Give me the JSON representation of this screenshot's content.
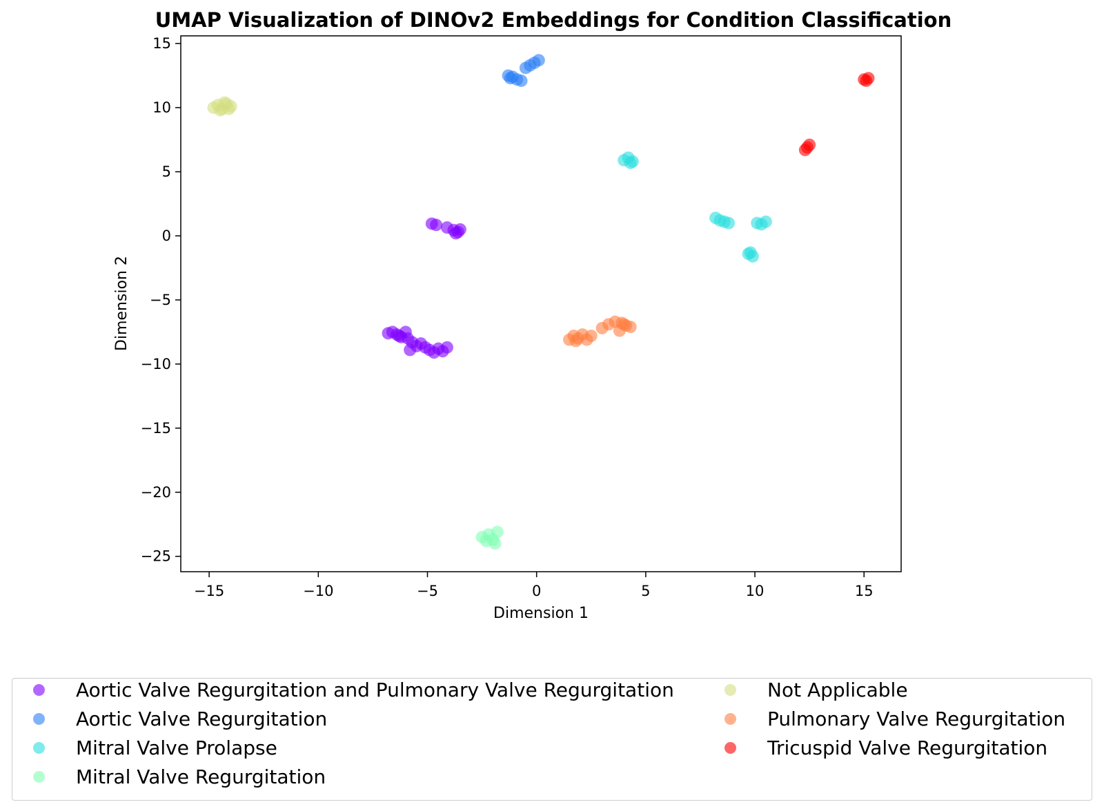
{
  "chart_data": {
    "type": "scatter",
    "title": "UMAP Visualization of DINOv2 Embeddings for Condition Classification",
    "xlabel": "Dimension 1",
    "ylabel": "Dimension 2",
    "xlim": [
      -16.3,
      16.7
    ],
    "ylim": [
      -26.2,
      15.6
    ],
    "xticks": [
      -15,
      -10,
      -5,
      0,
      5,
      10,
      15
    ],
    "yticks": [
      15,
      10,
      5,
      0,
      -5,
      -10,
      -15,
      -20,
      -25
    ],
    "xtick_labels": [
      "−15",
      "−10",
      "−5",
      "0",
      "5",
      "10",
      "15"
    ],
    "ytick_labels": [
      "15",
      "10",
      "5",
      "0",
      "−5",
      "−10",
      "−15",
      "−20",
      "−25"
    ],
    "grid": false,
    "legend_position": "bottom",
    "series": [
      {
        "name": "Aortic Valve Regurgitation and Pulmonary Valve Regurgitation",
        "color": "#8000ff",
        "points": [
          [
            -4.8,
            0.95
          ],
          [
            -4.6,
            0.85
          ],
          [
            -4.1,
            0.65
          ],
          [
            -3.8,
            0.45
          ],
          [
            -3.6,
            0.3
          ],
          [
            -3.5,
            0.5
          ],
          [
            -3.7,
            0.2
          ],
          [
            -6.8,
            -7.6
          ],
          [
            -6.6,
            -7.5
          ],
          [
            -6.4,
            -7.7
          ],
          [
            -6.2,
            -7.9
          ],
          [
            -6.0,
            -7.5
          ],
          [
            -5.9,
            -8.0
          ],
          [
            -5.7,
            -8.3
          ],
          [
            -5.5,
            -8.6
          ],
          [
            -5.3,
            -8.4
          ],
          [
            -5.1,
            -8.7
          ],
          [
            -4.9,
            -8.9
          ],
          [
            -4.7,
            -9.1
          ],
          [
            -4.5,
            -8.8
          ],
          [
            -4.3,
            -9.0
          ],
          [
            -4.1,
            -8.7
          ],
          [
            -5.8,
            -8.9
          ],
          [
            -6.3,
            -7.8
          ]
        ]
      },
      {
        "name": "Aortic Valve Regurgitation",
        "color": "#2c7ef7",
        "points": [
          [
            -1.3,
            12.5
          ],
          [
            -1.1,
            12.4
          ],
          [
            -0.9,
            12.2
          ],
          [
            -0.7,
            12.1
          ],
          [
            -0.5,
            13.1
          ],
          [
            -0.3,
            13.3
          ],
          [
            -0.1,
            13.5
          ],
          [
            0.1,
            13.7
          ],
          [
            -1.2,
            12.3
          ]
        ]
      },
      {
        "name": "Mitral Valve Prolapse",
        "color": "#2adddd",
        "points": [
          [
            4.0,
            5.9
          ],
          [
            4.2,
            6.1
          ],
          [
            4.4,
            5.8
          ],
          [
            4.3,
            5.7
          ],
          [
            8.2,
            1.4
          ],
          [
            8.4,
            1.2
          ],
          [
            8.6,
            1.1
          ],
          [
            8.8,
            1.0
          ],
          [
            10.1,
            1.0
          ],
          [
            10.3,
            0.9
          ],
          [
            10.5,
            1.1
          ],
          [
            9.7,
            -1.4
          ],
          [
            9.9,
            -1.6
          ],
          [
            9.8,
            -1.3
          ]
        ]
      },
      {
        "name": "Mitral Valve Regurgitation",
        "color": "#80ffb4",
        "points": [
          [
            -2.5,
            -23.5
          ],
          [
            -2.2,
            -23.3
          ],
          [
            -2.0,
            -23.7
          ],
          [
            -1.8,
            -23.1
          ],
          [
            -1.9,
            -24.0
          ],
          [
            -2.3,
            -23.8
          ]
        ]
      },
      {
        "name": "Not Applicable",
        "color": "#d4dd80",
        "points": [
          [
            -14.8,
            10.0
          ],
          [
            -14.6,
            10.2
          ],
          [
            -14.4,
            9.9
          ],
          [
            -14.2,
            10.3
          ],
          [
            -14.0,
            10.1
          ],
          [
            -14.5,
            9.8
          ],
          [
            -14.3,
            10.4
          ],
          [
            -14.1,
            9.9
          ]
        ]
      },
      {
        "name": "Pulmonary Valve Regurgitation",
        "color": "#ff7e41",
        "points": [
          [
            1.5,
            -8.1
          ],
          [
            1.7,
            -7.8
          ],
          [
            1.9,
            -8.0
          ],
          [
            2.1,
            -7.7
          ],
          [
            2.3,
            -8.1
          ],
          [
            2.5,
            -7.8
          ],
          [
            1.8,
            -8.2
          ],
          [
            3.0,
            -7.2
          ],
          [
            3.3,
            -6.9
          ],
          [
            3.6,
            -6.7
          ],
          [
            3.9,
            -6.8
          ],
          [
            4.1,
            -7.0
          ],
          [
            4.3,
            -7.1
          ],
          [
            3.8,
            -7.4
          ],
          [
            4.0,
            -6.9
          ]
        ]
      },
      {
        "name": "Tricuspid Valve Regurgitation",
        "color": "#ff0000",
        "points": [
          [
            12.3,
            6.7
          ],
          [
            12.4,
            6.9
          ],
          [
            12.5,
            7.1
          ],
          [
            15.0,
            12.2
          ],
          [
            15.2,
            12.3
          ],
          [
            15.1,
            12.1
          ]
        ]
      }
    ]
  }
}
